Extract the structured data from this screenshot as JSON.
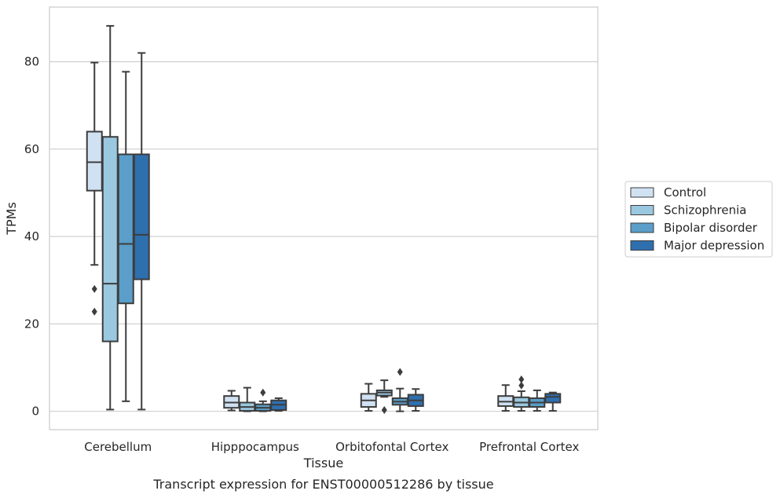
{
  "chart_data": {
    "type": "box",
    "title": "",
    "caption": "Transcript expression for ENST00000512286 by tissue",
    "xlabel": "Tissue",
    "ylabel": "TPMs",
    "ylim": [
      -4.2,
      92.5
    ],
    "yticks": [
      0,
      20,
      40,
      60,
      80
    ],
    "grid": "horizontal",
    "legend_position": "right",
    "categories": [
      "Cerebellum",
      "Hipppocampus",
      "Orbitofontal Cortex",
      "Prefrontal Cortex"
    ],
    "series": [
      {
        "name": "Control",
        "color": "#d0e1f2",
        "boxes": [
          {
            "whislo": 33.5,
            "q1": 50.5,
            "med": 57.0,
            "q3": 64.0,
            "whishi": 79.8,
            "fliers": [
              28.0,
              22.8
            ]
          },
          {
            "whislo": 0.2,
            "q1": 0.8,
            "med": 2.0,
            "q3": 3.5,
            "whishi": 4.7,
            "fliers": []
          },
          {
            "whislo": 0.1,
            "q1": 1.0,
            "med": 2.5,
            "q3": 4.0,
            "whishi": 6.3,
            "fliers": []
          },
          {
            "whislo": 0.1,
            "q1": 1.2,
            "med": 2.2,
            "q3": 3.5,
            "whishi": 6.0,
            "fliers": []
          }
        ]
      },
      {
        "name": "Schizophrenia",
        "color": "#9ac8e0",
        "boxes": [
          {
            "whislo": 0.4,
            "q1": 16.0,
            "med": 29.2,
            "q3": 62.8,
            "whishi": 88.2,
            "fliers": []
          },
          {
            "whislo": 0.0,
            "q1": 0.1,
            "med": 1.0,
            "q3": 2.0,
            "whishi": 5.4,
            "fliers": []
          },
          {
            "whislo": 3.3,
            "q1": 3.6,
            "med": 4.3,
            "q3": 4.8,
            "whishi": 7.1,
            "fliers": [
              0.3
            ]
          },
          {
            "whislo": 0.1,
            "q1": 1.0,
            "med": 2.0,
            "q3": 3.2,
            "whishi": 4.6,
            "fliers": [
              5.9,
              7.3
            ]
          }
        ]
      },
      {
        "name": "Bipolar disorder",
        "color": "#5a9ec9",
        "boxes": [
          {
            "whislo": 2.3,
            "q1": 24.7,
            "med": 38.3,
            "q3": 58.8,
            "whishi": 77.7,
            "fliers": []
          },
          {
            "whislo": 0.0,
            "q1": 0.1,
            "med": 0.8,
            "q3": 1.6,
            "whishi": 2.3,
            "fliers": [
              4.3
            ]
          },
          {
            "whislo": 0.0,
            "q1": 1.5,
            "med": 2.2,
            "q3": 3.0,
            "whishi": 5.2,
            "fliers": [
              9.0
            ]
          },
          {
            "whislo": 0.1,
            "q1": 1.0,
            "med": 2.0,
            "q3": 3.0,
            "whishi": 4.8,
            "fliers": []
          }
        ]
      },
      {
        "name": "Major depression",
        "color": "#2e6fae",
        "boxes": [
          {
            "whislo": 0.4,
            "q1": 30.2,
            "med": 40.4,
            "q3": 58.8,
            "whishi": 82.0,
            "fliers": []
          },
          {
            "whislo": 0.1,
            "q1": 0.3,
            "med": 1.5,
            "q3": 2.5,
            "whishi": 3.0,
            "fliers": []
          },
          {
            "whislo": 0.1,
            "q1": 1.2,
            "med": 2.5,
            "q3": 3.8,
            "whishi": 5.1,
            "fliers": []
          },
          {
            "whislo": 0.1,
            "q1": 2.0,
            "med": 3.3,
            "q3": 4.0,
            "whishi": 4.3,
            "fliers": []
          }
        ]
      }
    ]
  }
}
